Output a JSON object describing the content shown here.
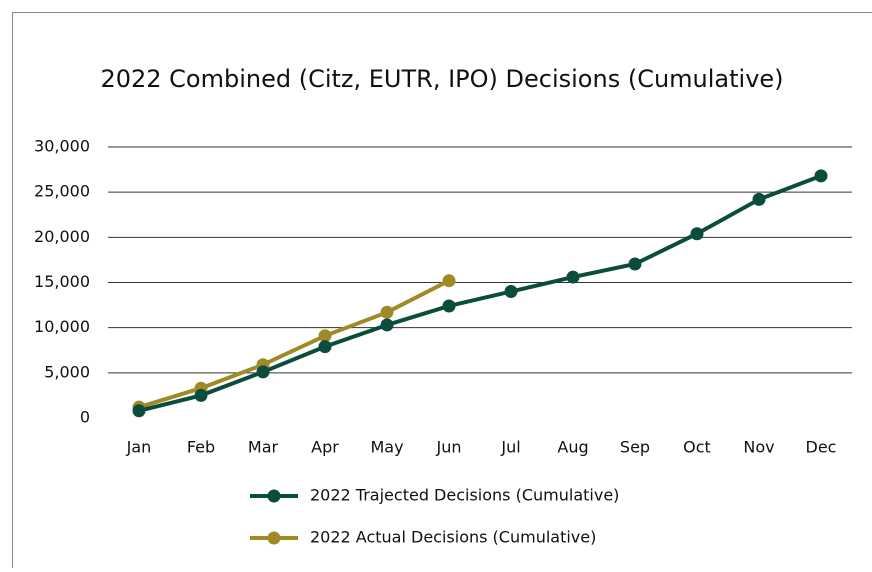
{
  "chart_data": {
    "type": "line",
    "title": "2022 Combined (Citz, EUTR, IPO) Decisions (Cumulative)",
    "categories": [
      "Jan",
      "Feb",
      "Mar",
      "Apr",
      "May",
      "Jun",
      "Jul",
      "Aug",
      "Sep",
      "Oct",
      "Nov",
      "Dec"
    ],
    "series": [
      {
        "name": "2022 Trajected Decisions (Cumulative)",
        "color": "#0b4d3c",
        "values": [
          800,
          2500,
          5100,
          7900,
          10300,
          12400,
          14000,
          15600,
          17050,
          20400,
          24200,
          26800
        ]
      },
      {
        "name": "2022 Actual Decisions (Cumulative)",
        "color": "#a08a25",
        "values": [
          1200,
          3300,
          5900,
          9100,
          11700,
          15200,
          null,
          null,
          null,
          null,
          null,
          null
        ]
      }
    ],
    "ylim": [
      0,
      30000
    ],
    "yticks": [
      0,
      {
        "value": 5000,
        "label": "5,000"
      },
      {
        "value": 10000,
        "label": "10,000"
      },
      {
        "value": 15000,
        "label": "15,000"
      },
      {
        "value": 20000,
        "label": "20,000"
      },
      {
        "value": 25000,
        "label": "25,000"
      },
      {
        "value": 30000,
        "label": "30,000"
      }
    ],
    "grid": true,
    "legend": "bottom"
  }
}
